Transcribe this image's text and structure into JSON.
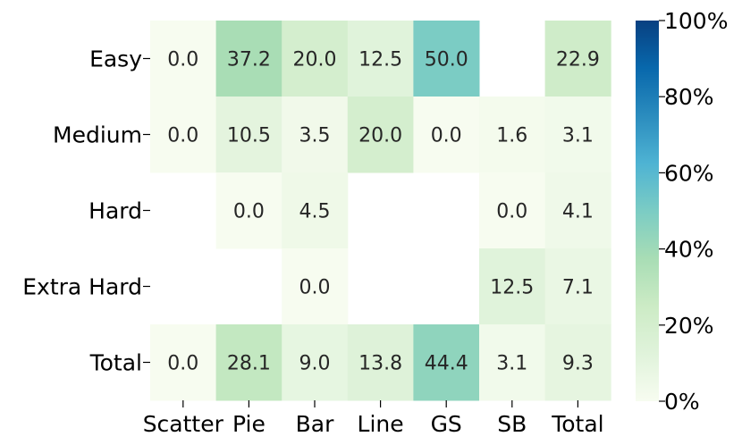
{
  "chart_data": {
    "type": "heatmap",
    "rows": [
      "Easy",
      "Medium",
      "Hard",
      "Extra Hard",
      "Total"
    ],
    "columns": [
      "Scatter",
      "Pie",
      "Bar",
      "Line",
      "GS",
      "SB",
      "Total"
    ],
    "values": [
      [
        0.0,
        37.2,
        20.0,
        12.5,
        50.0,
        null,
        22.9
      ],
      [
        0.0,
        10.5,
        3.5,
        20.0,
        0.0,
        1.6,
        3.1
      ],
      [
        null,
        0.0,
        4.5,
        null,
        null,
        0.0,
        4.1
      ],
      [
        null,
        null,
        0.0,
        null,
        null,
        12.5,
        7.1
      ],
      [
        0.0,
        28.1,
        9.0,
        13.8,
        44.4,
        3.1,
        9.3
      ]
    ],
    "value_format": "one decimal",
    "colorbar": {
      "min": 0,
      "max": 100,
      "ticks": [
        "0%",
        "20%",
        "40%",
        "60%",
        "80%",
        "100%"
      ],
      "colormap": "GnBu",
      "stops": [
        "#f7fcf0",
        "#e0f3db",
        "#ccebc5",
        "#a8ddb5",
        "#7bccc4",
        "#4eb3d3",
        "#2b8cbe",
        "#0868ac",
        "#084081"
      ]
    },
    "legend_position": "right",
    "grid": false
  }
}
